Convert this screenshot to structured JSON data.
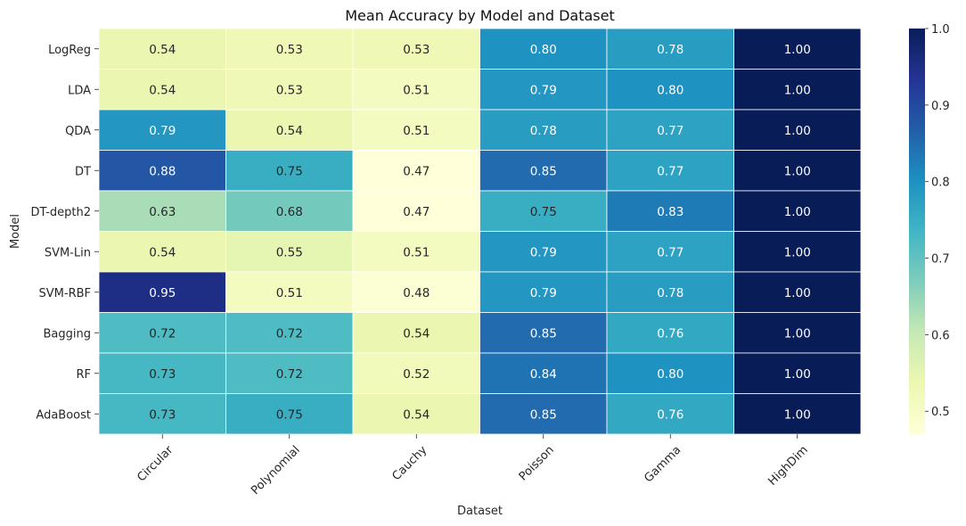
{
  "chart_data": {
    "type": "heatmap",
    "title": "Mean Accuracy by Model and Dataset",
    "xlabel": "Dataset",
    "ylabel": "Model",
    "x_categories": [
      "Circular",
      "Polynomial",
      "Cauchy",
      "Poisson",
      "Gamma",
      "HighDim"
    ],
    "y_categories": [
      "LogReg",
      "LDA",
      "QDA",
      "DT",
      "DT-depth2",
      "SVM-Lin",
      "SVM-RBF",
      "Bagging",
      "RF",
      "AdaBoost"
    ],
    "values": [
      [
        0.54,
        0.53,
        0.53,
        0.8,
        0.78,
        1.0
      ],
      [
        0.54,
        0.53,
        0.51,
        0.79,
        0.8,
        1.0
      ],
      [
        0.79,
        0.54,
        0.51,
        0.78,
        0.77,
        1.0
      ],
      [
        0.88,
        0.75,
        0.47,
        0.85,
        0.77,
        1.0
      ],
      [
        0.63,
        0.68,
        0.47,
        0.75,
        0.83,
        1.0
      ],
      [
        0.54,
        0.55,
        0.51,
        0.79,
        0.77,
        1.0
      ],
      [
        0.95,
        0.51,
        0.48,
        0.79,
        0.78,
        1.0
      ],
      [
        0.72,
        0.72,
        0.54,
        0.85,
        0.76,
        1.0
      ],
      [
        0.73,
        0.72,
        0.52,
        0.84,
        0.8,
        1.0
      ],
      [
        0.73,
        0.75,
        0.54,
        0.85,
        0.76,
        1.0
      ]
    ],
    "value_format": "0.00",
    "colormap": "YlGnBu",
    "colormap_stops": [
      "#ffffd9",
      "#edf8b1",
      "#c7e9b4",
      "#7fcdbb",
      "#41b6c4",
      "#1d91c0",
      "#225ea8",
      "#253494",
      "#081d58"
    ],
    "color_range": [
      0.47,
      1.0
    ],
    "colorbar_ticks": [
      "0.5",
      "0.6",
      "0.7",
      "0.8",
      "0.9",
      "1.0"
    ],
    "colorbar_tick_values": [
      0.5,
      0.6,
      0.7,
      0.8,
      0.9,
      1.0
    ],
    "annotation_colors": {
      "light_bg": "#262626",
      "dark_bg": "#ffffff"
    },
    "cell_border_color": "#ffffff",
    "x_tick_rotation_deg": 45,
    "grid": false
  }
}
